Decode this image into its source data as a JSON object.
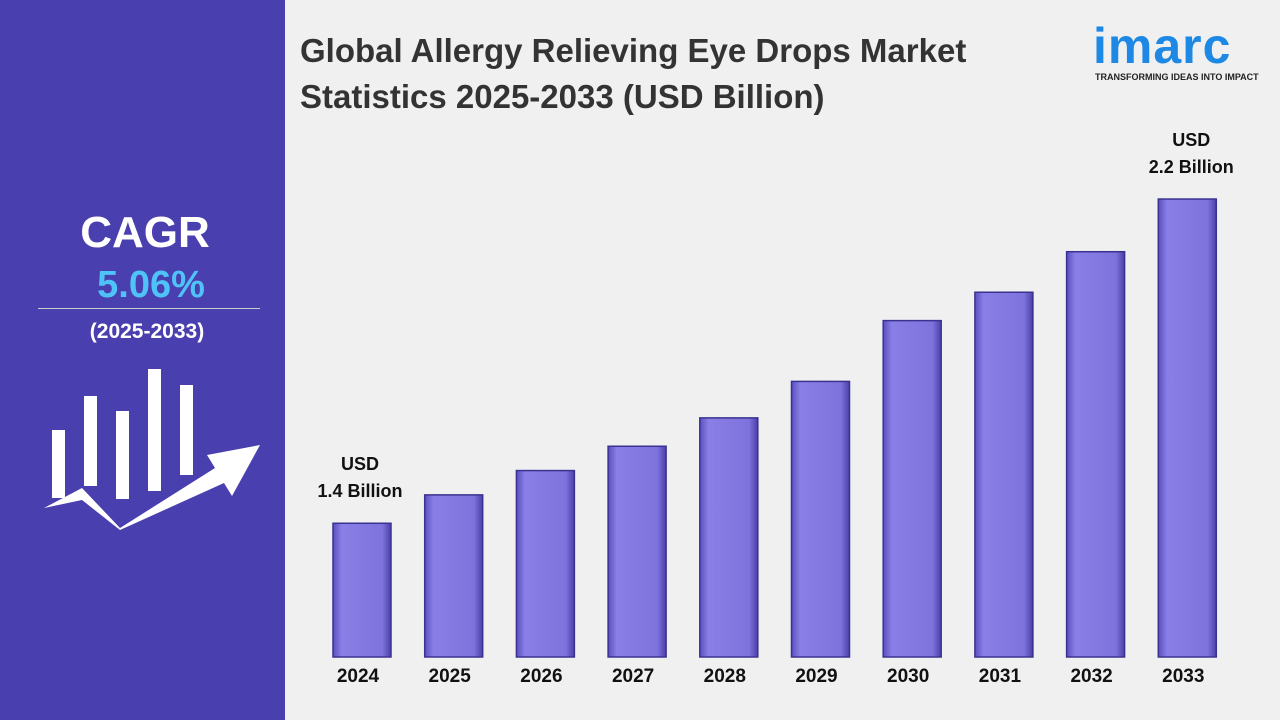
{
  "chart_data": {
    "type": "bar",
    "title": "Global Allergy Relieving Eye Drops Market Statistics 2025-2033 (USD Billion)",
    "categories": [
      "2024",
      "2025",
      "2026",
      "2027",
      "2028",
      "2029",
      "2030",
      "2031",
      "2032",
      "2033"
    ],
    "values": [
      1.4,
      1.47,
      1.53,
      1.59,
      1.66,
      1.75,
      1.9,
      1.97,
      2.07,
      2.2
    ],
    "value_labels": [
      "USD\n1.4 Billion",
      null,
      null,
      null,
      null,
      null,
      null,
      null,
      null,
      "USD\n2.2 Billion"
    ],
    "color": "#7e72dc",
    "ylim": [
      1.07,
      2.3
    ]
  },
  "sidebar": {
    "label": "CAGR",
    "value": "5.06%",
    "period": "(2025-2033)"
  },
  "logo": {
    "name": "imarc",
    "tagline": "TRANSFORMING IDEAS INTO IMPACT"
  }
}
